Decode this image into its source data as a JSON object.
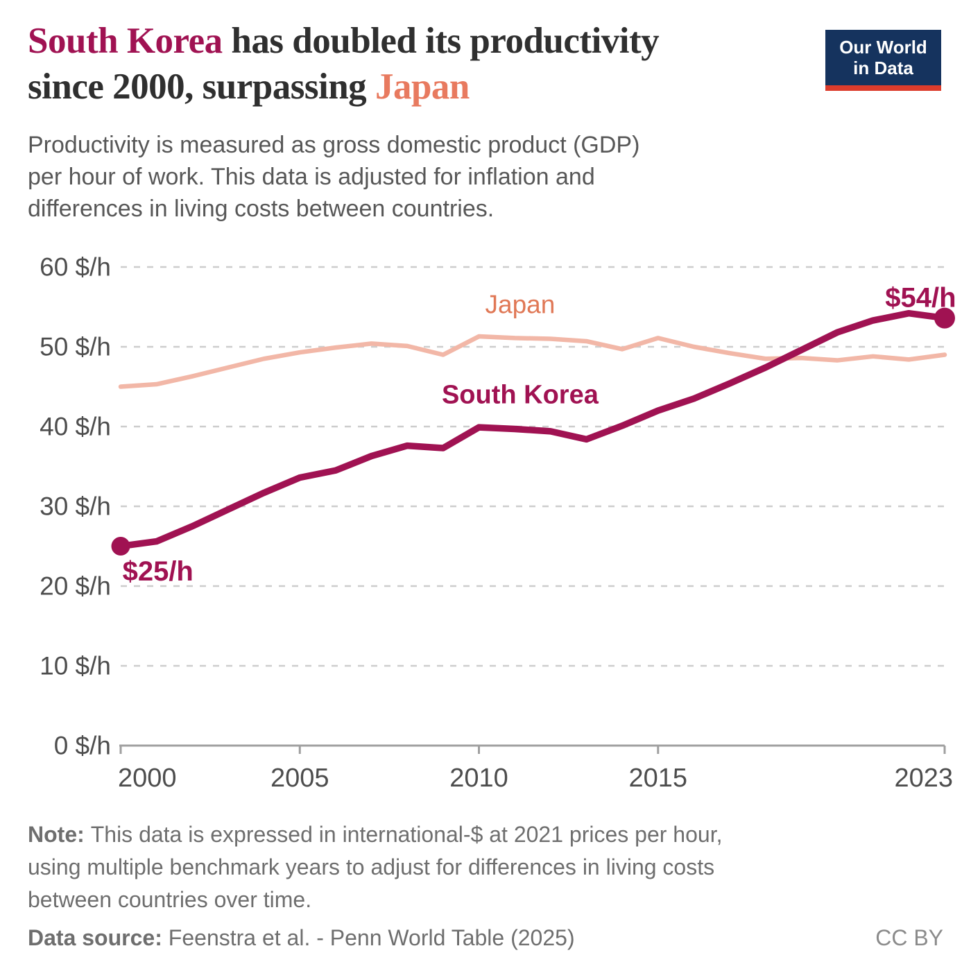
{
  "header": {
    "title_highlight_1": "South Korea",
    "title_middle": " has doubled its productivity\nsince 2000, surpassing ",
    "title_highlight_2": "Japan",
    "subtitle": "Productivity is measured as gross domestic product (GDP)\nper hour of work. This data is adjusted for inflation and\ndifferences in living costs between countries.",
    "logo": {
      "line1": "Our World",
      "line2": "in Data"
    }
  },
  "chart_data": {
    "type": "line",
    "title": "GDP per hour of work, South Korea vs Japan",
    "xlabel": "",
    "ylabel": "$/h",
    "xlim": [
      2000,
      2023
    ],
    "ylim": [
      0,
      60
    ],
    "grid": "horizontal-dashed",
    "legend_position": "inline-labels",
    "x": [
      2000,
      2001,
      2002,
      2003,
      2004,
      2005,
      2006,
      2007,
      2008,
      2009,
      2010,
      2011,
      2012,
      2013,
      2014,
      2015,
      2016,
      2017,
      2018,
      2019,
      2020,
      2021,
      2022,
      2023
    ],
    "series": [
      {
        "name": "South Korea",
        "color": "#a01252",
        "line_width": 9.5,
        "start_marker": true,
        "end_marker": true,
        "values": [
          25.0,
          25.6,
          27.5,
          29.6,
          31.7,
          33.6,
          34.5,
          36.3,
          37.6,
          37.3,
          39.9,
          39.7,
          39.4,
          38.4,
          40.1,
          42.0,
          43.5,
          45.4,
          47.4,
          49.6,
          51.8,
          53.3,
          54.2,
          53.6
        ]
      },
      {
        "name": "Japan",
        "color": "#f2b7a7",
        "line_width": 6.5,
        "start_marker": false,
        "end_marker": false,
        "values": [
          45.0,
          45.3,
          46.3,
          47.4,
          48.5,
          49.3,
          49.9,
          50.4,
          50.1,
          49.0,
          51.3,
          51.1,
          51.0,
          50.7,
          49.7,
          51.1,
          50.0,
          49.2,
          48.5,
          48.6,
          48.3,
          48.8,
          48.4,
          49.0
        ]
      }
    ],
    "yticks": [
      0,
      10,
      20,
      30,
      40,
      50,
      60
    ],
    "ytick_labels": [
      "0 $/h",
      "10 $/h",
      "20 $/h",
      "30 $/h",
      "40 $/h",
      "50 $/h",
      "60 $/h"
    ],
    "xticks": [
      2000,
      2005,
      2010,
      2015,
      2023
    ],
    "xtick_labels": [
      "2000",
      "2005",
      "2010",
      "2015",
      "2023"
    ],
    "annotations": [
      {
        "text": "Japan",
        "x": 2011.15,
        "y": 54.2,
        "anchor": "middle",
        "color": "#e07856",
        "weight": "400",
        "size": 37,
        "name": "japan-series-label"
      },
      {
        "text": "South Korea",
        "x": 2011.15,
        "y": 42.9,
        "anchor": "middle",
        "color": "#a01252",
        "weight": "700",
        "size": 38,
        "name": "south-korea-series-label"
      },
      {
        "text": "$25/h",
        "x": 2000.05,
        "y": 20.7,
        "anchor": "start",
        "color": "#a01252",
        "weight": "700",
        "size": 40,
        "name": "start-value-label"
      },
      {
        "text": "$54/h",
        "x": 2023.32,
        "y": 55.0,
        "anchor": "end",
        "color": "#a01252",
        "weight": "700",
        "size": 40,
        "name": "end-value-label"
      }
    ],
    "axis_color": "#9f9f9f",
    "grid_color": "#cdcdcd",
    "tick_label_color": "#4d4d4d"
  },
  "footer": {
    "note_label": "Note:",
    "note_text": "This data is expressed in international-$ at 2021 prices per hour,\nusing multiple benchmark years to adjust for differences in living costs\nbetween countries over time.",
    "source_label": "Data source:",
    "source_text": "Feenstra et al. - Penn World Table (2025)",
    "license": "CC BY"
  }
}
